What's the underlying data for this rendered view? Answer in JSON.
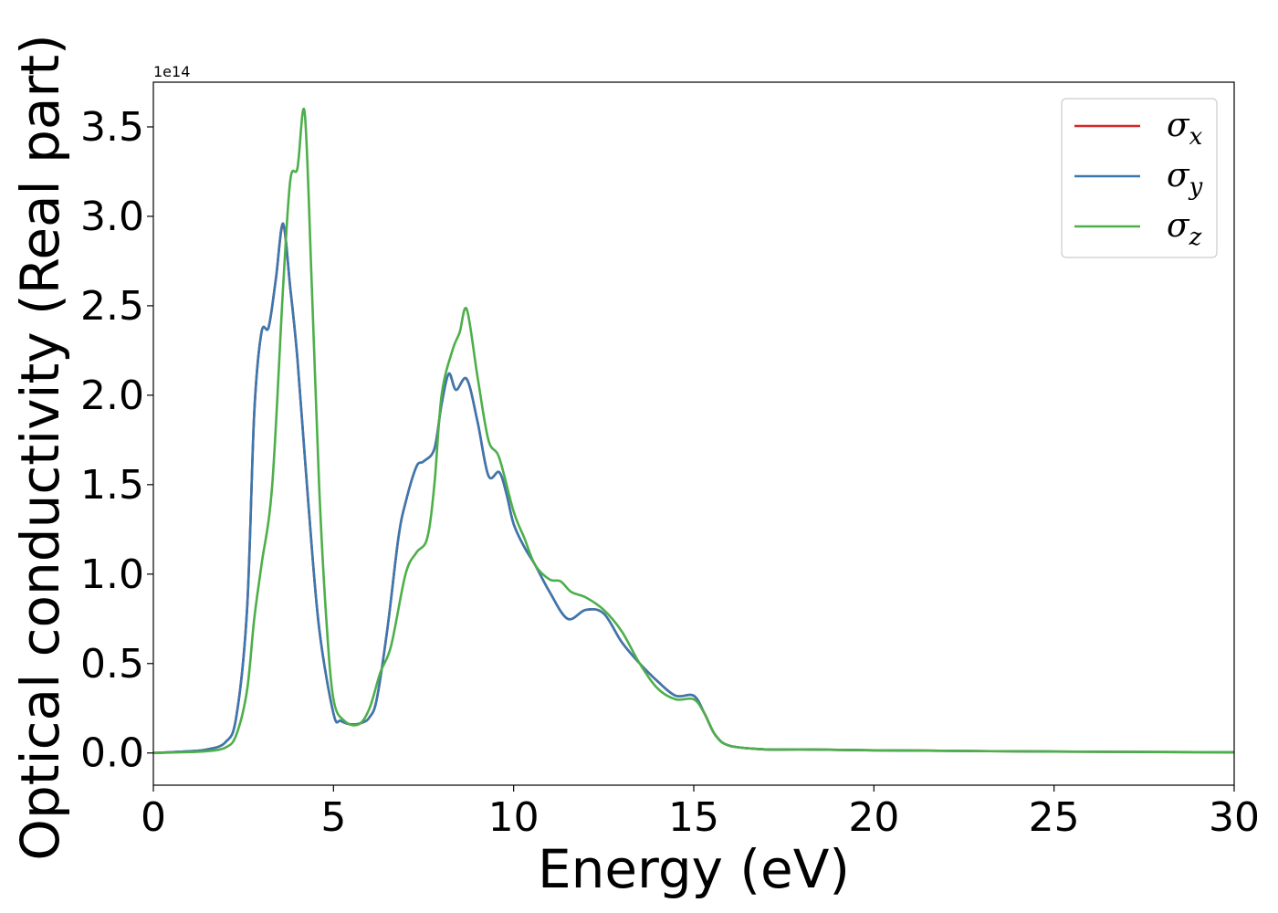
{
  "chart_data": {
    "type": "line",
    "title": "",
    "xlabel": "Energy (eV)",
    "ylabel": "Optical conductivity (Real part)",
    "y_offset_text": "1e14",
    "xlim": [
      0,
      30
    ],
    "ylim": [
      -0.18,
      3.75
    ],
    "x_ticks": [
      0,
      5,
      10,
      15,
      20,
      25,
      30
    ],
    "y_ticks": [
      0.0,
      0.5,
      1.0,
      1.5,
      2.0,
      2.5,
      3.0,
      3.5
    ],
    "x_tick_labels": [
      "0",
      "5",
      "10",
      "15",
      "20",
      "25",
      "30"
    ],
    "y_tick_labels": [
      "0.0",
      "0.5",
      "1.0",
      "1.5",
      "2.0",
      "2.5",
      "3.0",
      "3.5"
    ],
    "grid": false,
    "legend_position": "top-right",
    "legend": {
      "entries": [
        {
          "base": "σ",
          "sub": "x"
        },
        {
          "base": "σ",
          "sub": "y"
        },
        {
          "base": "σ",
          "sub": "z"
        }
      ]
    },
    "series": [
      {
        "name": "σx",
        "color": "#d62728",
        "x": [
          0,
          1,
          1.5,
          2,
          2.3,
          2.6,
          2.8,
          3.0,
          3.2,
          3.4,
          3.6,
          3.8,
          4.0,
          4.3,
          4.6,
          5.0,
          5.2,
          5.5,
          5.8,
          6.0,
          6.2,
          6.5,
          6.8,
          7.0,
          7.3,
          7.5,
          7.8,
          8.0,
          8.2,
          8.4,
          8.7,
          9.0,
          9.3,
          9.6,
          9.8,
          10.0,
          10.3,
          10.6,
          11.0,
          11.5,
          12.0,
          12.5,
          13.0,
          13.5,
          14.0,
          14.5,
          15.0,
          15.3,
          15.6,
          16.0,
          17.0,
          18.0,
          20.0,
          25.0,
          30.0
        ],
        "y": [
          0.0,
          0.01,
          0.02,
          0.06,
          0.2,
          0.8,
          1.9,
          2.35,
          2.38,
          2.65,
          2.95,
          2.6,
          2.2,
          1.4,
          0.7,
          0.22,
          0.18,
          0.16,
          0.17,
          0.2,
          0.3,
          0.7,
          1.2,
          1.4,
          1.6,
          1.63,
          1.7,
          1.95,
          2.12,
          2.03,
          2.09,
          1.85,
          1.55,
          1.57,
          1.45,
          1.28,
          1.15,
          1.05,
          0.9,
          0.75,
          0.8,
          0.78,
          0.62,
          0.5,
          0.4,
          0.32,
          0.32,
          0.22,
          0.1,
          0.04,
          0.02,
          0.02,
          0.015,
          0.008,
          0.004
        ]
      },
      {
        "name": "σy",
        "color": "#3a78b0",
        "x": [
          0,
          1,
          1.5,
          2,
          2.3,
          2.6,
          2.8,
          3.0,
          3.2,
          3.4,
          3.6,
          3.8,
          4.0,
          4.3,
          4.6,
          5.0,
          5.2,
          5.5,
          5.8,
          6.0,
          6.2,
          6.5,
          6.8,
          7.0,
          7.3,
          7.5,
          7.8,
          8.0,
          8.2,
          8.4,
          8.7,
          9.0,
          9.3,
          9.6,
          9.8,
          10.0,
          10.3,
          10.6,
          11.0,
          11.5,
          12.0,
          12.5,
          13.0,
          13.5,
          14.0,
          14.5,
          15.0,
          15.3,
          15.6,
          16.0,
          17.0,
          18.0,
          20.0,
          25.0,
          30.0
        ],
        "y": [
          0.0,
          0.01,
          0.02,
          0.06,
          0.2,
          0.8,
          1.9,
          2.35,
          2.38,
          2.65,
          2.96,
          2.6,
          2.2,
          1.4,
          0.7,
          0.22,
          0.18,
          0.16,
          0.17,
          0.2,
          0.3,
          0.7,
          1.2,
          1.4,
          1.6,
          1.63,
          1.7,
          1.95,
          2.12,
          2.03,
          2.09,
          1.85,
          1.55,
          1.57,
          1.45,
          1.28,
          1.15,
          1.05,
          0.9,
          0.75,
          0.8,
          0.78,
          0.62,
          0.5,
          0.4,
          0.32,
          0.32,
          0.22,
          0.1,
          0.04,
          0.02,
          0.02,
          0.015,
          0.008,
          0.004
        ]
      },
      {
        "name": "σz",
        "color": "#4daf4a",
        "x": [
          0,
          1,
          1.5,
          2,
          2.3,
          2.6,
          2.8,
          3.0,
          3.3,
          3.6,
          3.8,
          4.0,
          4.2,
          4.4,
          4.6,
          4.8,
          5.0,
          5.3,
          5.7,
          6.0,
          6.3,
          6.6,
          7.0,
          7.3,
          7.6,
          7.8,
          8.0,
          8.3,
          8.5,
          8.7,
          9.0,
          9.3,
          9.6,
          10.0,
          10.3,
          10.6,
          11.0,
          11.3,
          11.6,
          12.0,
          12.5,
          13.0,
          13.5,
          14.0,
          14.5,
          15.0,
          15.3,
          15.6,
          16.0,
          17.0,
          18.0,
          20.0,
          25.0,
          30.0
        ],
        "y": [
          0.0,
          0.005,
          0.01,
          0.03,
          0.1,
          0.35,
          0.75,
          1.05,
          1.5,
          2.6,
          3.2,
          3.27,
          3.58,
          2.6,
          1.5,
          0.75,
          0.3,
          0.18,
          0.16,
          0.25,
          0.45,
          0.6,
          1.0,
          1.12,
          1.2,
          1.5,
          2.0,
          2.25,
          2.35,
          2.48,
          2.1,
          1.75,
          1.65,
          1.35,
          1.2,
          1.05,
          0.97,
          0.96,
          0.9,
          0.87,
          0.8,
          0.68,
          0.5,
          0.36,
          0.3,
          0.3,
          0.22,
          0.1,
          0.04,
          0.02,
          0.02,
          0.015,
          0.008,
          0.004
        ]
      }
    ]
  }
}
